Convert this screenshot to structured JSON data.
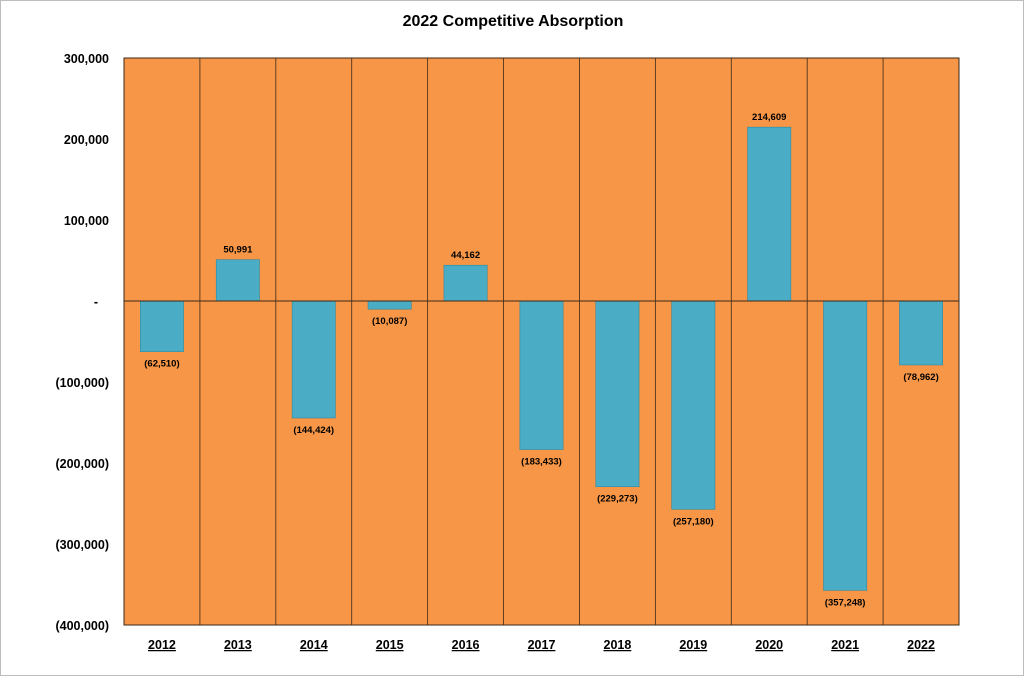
{
  "chart_data": {
    "type": "bar",
    "title": "2022 Competitive Absorption",
    "categories": [
      "2012",
      "2013",
      "2014",
      "2015",
      "2016",
      "2017",
      "2018",
      "2019",
      "2020",
      "2021",
      "2022"
    ],
    "values": [
      -62510,
      50991,
      -144424,
      -10087,
      44162,
      -183433,
      -229273,
      -257180,
      214609,
      -357248,
      -78962
    ],
    "data_labels": [
      "(62,510)",
      "50,991",
      "(144,424)",
      "(10,087)",
      "44,162",
      "(183,433)",
      "(229,273)",
      "(257,180)",
      "214,609",
      "(357,248)",
      "(78,962)"
    ],
    "y_ticks": [
      300000,
      200000,
      100000,
      0,
      -100000,
      -200000,
      -300000,
      -400000
    ],
    "y_tick_labels": [
      "300,000",
      "200,000",
      "100,000",
      "-",
      "(100,000)",
      "(200,000)",
      "(300,000)",
      "(400,000)"
    ],
    "ylim": [
      -400000,
      300000
    ],
    "xlabel": "",
    "ylabel": "",
    "legend": "none",
    "colors": {
      "plot_background": "#f79646",
      "bar": "#4bacc6",
      "bar_border": "#2f8aa3",
      "grid": "#3a2a1a",
      "zero_line": "#3a2a1a"
    }
  }
}
